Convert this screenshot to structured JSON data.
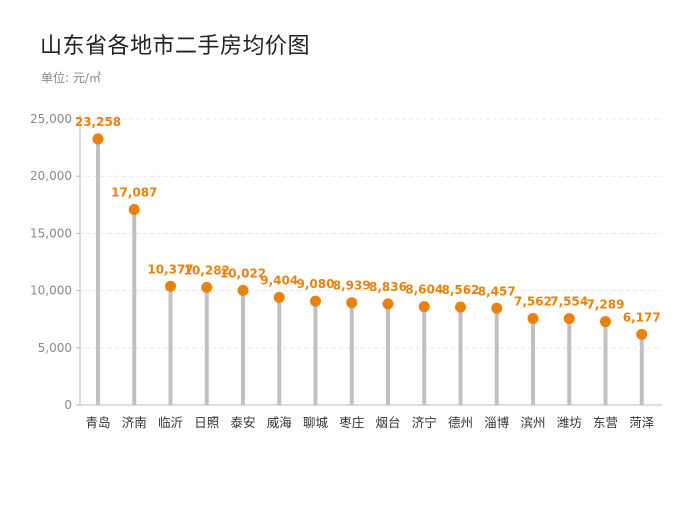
{
  "colors": {
    "accent": "#E8820C",
    "stem": "#C0C0C0",
    "grid": "#E6E6E6",
    "axis": "#BBBBBB"
  },
  "chart_data": {
    "type": "lollipop",
    "title": "山东省各地市二手房均价图",
    "subtitle": "单位: 元/㎡",
    "xlabel": "",
    "ylabel": "",
    "ylim": [
      0,
      25000
    ],
    "yticks": [
      0,
      5000,
      10000,
      15000,
      20000,
      25000
    ],
    "ytick_labels": [
      "0",
      "5,000",
      "10,000",
      "15,000",
      "20,000",
      "25,000"
    ],
    "grid": true,
    "legend": "none",
    "categories": [
      "青岛",
      "济南",
      "临沂",
      "日照",
      "泰安",
      "威海",
      "聊城",
      "枣庄",
      "烟台",
      "济宁",
      "德州",
      "淄博",
      "滨州",
      "潍坊",
      "东营",
      "菏泽"
    ],
    "values": [
      23258,
      17087,
      10377,
      10282,
      10022,
      9404,
      9080,
      8939,
      8836,
      8604,
      8562,
      8457,
      7562,
      7554,
      7289,
      6177
    ],
    "value_labels": [
      "23,258",
      "17,087",
      "10,377",
      "10,282",
      "10,022",
      "9,404",
      "9,080",
      "8,939",
      "8,836",
      "8,604",
      "8,562",
      "8,457",
      "7,562",
      "7,554",
      "7,289",
      "6,177"
    ]
  }
}
